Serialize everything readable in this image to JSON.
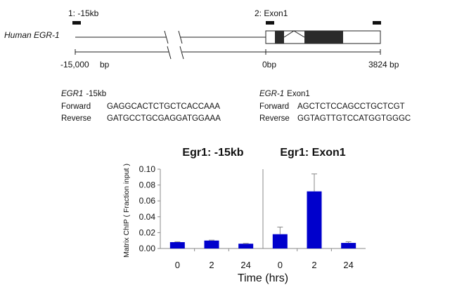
{
  "gene_diagram": {
    "gene_label": "Human EGR-1",
    "region_labels": [
      "1: -15kb",
      "2: Exon1"
    ],
    "scale_labels": [
      "-15,000",
      "bp",
      "0bp",
      "3824 bp"
    ]
  },
  "primers": {
    "egr1_15kb": {
      "gene": "EGR1",
      "region": "-15kb",
      "forward_label": "Forward",
      "forward_seq": "GAGGCACTCTGCTCACCAAA",
      "reverse_label": "Reverse",
      "reverse_seq": "GATGCCTGCGAGGATGGAAA"
    },
    "egr1_exon1": {
      "gene": "EGR-1",
      "region": "Exon1",
      "forward_label": "Forward",
      "forward_seq": "AGCTCTCCAGCCTGCTCGT",
      "reverse_label": "Reverse",
      "reverse_seq": "GGTAGTTGTCCATGGTGGGC"
    }
  },
  "chart_shared": {
    "ylabel": "Matrix ChIP ( Fraction input )",
    "xlabel": "Time (hrs)",
    "bar_color": "#0000cc"
  },
  "chart_data": [
    {
      "type": "bar",
      "title": "Egr1: -15kb",
      "categories": [
        "0",
        "2",
        "24"
      ],
      "values": [
        0.008,
        0.01,
        0.006
      ],
      "errors": [
        0.0005,
        0.0005,
        0.0004
      ],
      "ylim": [
        0,
        0.1
      ],
      "yticks": [
        "0.00",
        "0.02",
        "0.04",
        "0.06",
        "0.08",
        "0.10"
      ],
      "grid": false
    },
    {
      "type": "bar",
      "title": "Egr1: Exon1",
      "categories": [
        "0",
        "2",
        "24"
      ],
      "values": [
        0.018,
        0.072,
        0.007
      ],
      "errors": [
        0.009,
        0.022,
        0.0015
      ],
      "ylim": [
        0,
        0.1
      ],
      "grid": false
    }
  ]
}
